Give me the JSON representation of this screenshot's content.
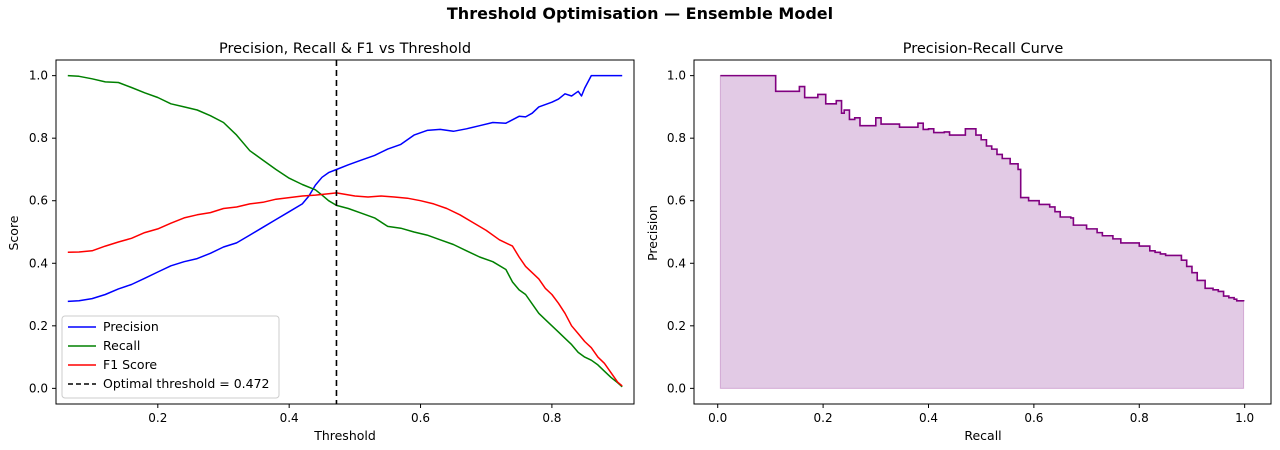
{
  "suptitle": "Threshold Optimisation — Ensemble Model",
  "chart_data": [
    {
      "type": "line",
      "title": "Precision, Recall & F1 vs Threshold",
      "xlabel": "Threshold",
      "ylabel": "Score",
      "xlim": [
        0.045,
        0.925
      ],
      "ylim": [
        -0.05,
        1.05
      ],
      "xticks": [
        0.2,
        0.4,
        0.6,
        0.8
      ],
      "yticks": [
        0.0,
        0.2,
        0.4,
        0.6,
        0.8,
        1.0
      ],
      "xtick_labels": [
        "0.2",
        "0.4",
        "0.6",
        "0.8"
      ],
      "ytick_labels": [
        "0.0",
        "0.2",
        "0.4",
        "0.6",
        "0.8",
        "1.0"
      ],
      "grid": false,
      "legend_position": "lower-left",
      "series": [
        {
          "name": "Precision",
          "color": "#0000ff",
          "points": [
            [
              0.063,
              0.278
            ],
            [
              0.08,
              0.28
            ],
            [
              0.1,
              0.287
            ],
            [
              0.12,
              0.3
            ],
            [
              0.14,
              0.318
            ],
            [
              0.16,
              0.332
            ],
            [
              0.18,
              0.352
            ],
            [
              0.2,
              0.372
            ],
            [
              0.22,
              0.392
            ],
            [
              0.24,
              0.405
            ],
            [
              0.26,
              0.415
            ],
            [
              0.28,
              0.432
            ],
            [
              0.3,
              0.452
            ],
            [
              0.32,
              0.465
            ],
            [
              0.34,
              0.49
            ],
            [
              0.36,
              0.515
            ],
            [
              0.38,
              0.54
            ],
            [
              0.4,
              0.565
            ],
            [
              0.42,
              0.59
            ],
            [
              0.43,
              0.615
            ],
            [
              0.44,
              0.65
            ],
            [
              0.45,
              0.675
            ],
            [
              0.46,
              0.69
            ],
            [
              0.472,
              0.7
            ],
            [
              0.49,
              0.715
            ],
            [
              0.51,
              0.73
            ],
            [
              0.53,
              0.745
            ],
            [
              0.55,
              0.765
            ],
            [
              0.57,
              0.78
            ],
            [
              0.59,
              0.81
            ],
            [
              0.61,
              0.825
            ],
            [
              0.63,
              0.828
            ],
            [
              0.65,
              0.822
            ],
            [
              0.67,
              0.83
            ],
            [
              0.69,
              0.84
            ],
            [
              0.71,
              0.85
            ],
            [
              0.73,
              0.848
            ],
            [
              0.75,
              0.87
            ],
            [
              0.76,
              0.868
            ],
            [
              0.77,
              0.88
            ],
            [
              0.78,
              0.9
            ],
            [
              0.8,
              0.915
            ],
            [
              0.81,
              0.925
            ],
            [
              0.82,
              0.942
            ],
            [
              0.83,
              0.935
            ],
            [
              0.84,
              0.95
            ],
            [
              0.845,
              0.935
            ],
            [
              0.85,
              0.96
            ],
            [
              0.855,
              0.98
            ],
            [
              0.86,
              1.0
            ],
            [
              0.907,
              1.0
            ]
          ]
        },
        {
          "name": "Recall",
          "color": "#008000",
          "points": [
            [
              0.063,
              1.0
            ],
            [
              0.08,
              0.998
            ],
            [
              0.1,
              0.99
            ],
            [
              0.12,
              0.98
            ],
            [
              0.14,
              0.978
            ],
            [
              0.16,
              0.962
            ],
            [
              0.18,
              0.945
            ],
            [
              0.2,
              0.93
            ],
            [
              0.22,
              0.91
            ],
            [
              0.24,
              0.9
            ],
            [
              0.26,
              0.89
            ],
            [
              0.28,
              0.872
            ],
            [
              0.3,
              0.85
            ],
            [
              0.32,
              0.81
            ],
            [
              0.34,
              0.76
            ],
            [
              0.36,
              0.73
            ],
            [
              0.38,
              0.7
            ],
            [
              0.4,
              0.672
            ],
            [
              0.42,
              0.652
            ],
            [
              0.44,
              0.635
            ],
            [
              0.45,
              0.618
            ],
            [
              0.46,
              0.6
            ],
            [
              0.472,
              0.585
            ],
            [
              0.49,
              0.575
            ],
            [
              0.51,
              0.56
            ],
            [
              0.53,
              0.545
            ],
            [
              0.55,
              0.518
            ],
            [
              0.57,
              0.512
            ],
            [
              0.59,
              0.5
            ],
            [
              0.61,
              0.49
            ],
            [
              0.63,
              0.475
            ],
            [
              0.65,
              0.46
            ],
            [
              0.67,
              0.44
            ],
            [
              0.69,
              0.42
            ],
            [
              0.71,
              0.405
            ],
            [
              0.73,
              0.38
            ],
            [
              0.74,
              0.34
            ],
            [
              0.75,
              0.315
            ],
            [
              0.76,
              0.3
            ],
            [
              0.77,
              0.27
            ],
            [
              0.78,
              0.24
            ],
            [
              0.79,
              0.22
            ],
            [
              0.8,
              0.2
            ],
            [
              0.81,
              0.18
            ],
            [
              0.82,
              0.16
            ],
            [
              0.83,
              0.14
            ],
            [
              0.84,
              0.115
            ],
            [
              0.85,
              0.1
            ],
            [
              0.86,
              0.09
            ],
            [
              0.87,
              0.075
            ],
            [
              0.88,
              0.055
            ],
            [
              0.89,
              0.035
            ],
            [
              0.9,
              0.018
            ],
            [
              0.907,
              0.005
            ]
          ]
        },
        {
          "name": "F1 Score",
          "color": "#ff0000",
          "points": [
            [
              0.063,
              0.435
            ],
            [
              0.08,
              0.436
            ],
            [
              0.1,
              0.44
            ],
            [
              0.12,
              0.455
            ],
            [
              0.14,
              0.468
            ],
            [
              0.16,
              0.48
            ],
            [
              0.18,
              0.498
            ],
            [
              0.2,
              0.51
            ],
            [
              0.22,
              0.528
            ],
            [
              0.24,
              0.545
            ],
            [
              0.26,
              0.555
            ],
            [
              0.28,
              0.562
            ],
            [
              0.3,
              0.575
            ],
            [
              0.32,
              0.58
            ],
            [
              0.34,
              0.59
            ],
            [
              0.36,
              0.595
            ],
            [
              0.38,
              0.605
            ],
            [
              0.4,
              0.61
            ],
            [
              0.42,
              0.615
            ],
            [
              0.44,
              0.618
            ],
            [
              0.46,
              0.622
            ],
            [
              0.472,
              0.625
            ],
            [
              0.5,
              0.615
            ],
            [
              0.52,
              0.612
            ],
            [
              0.54,
              0.615
            ],
            [
              0.56,
              0.612
            ],
            [
              0.58,
              0.608
            ],
            [
              0.6,
              0.6
            ],
            [
              0.62,
              0.59
            ],
            [
              0.64,
              0.575
            ],
            [
              0.66,
              0.555
            ],
            [
              0.68,
              0.53
            ],
            [
              0.7,
              0.505
            ],
            [
              0.72,
              0.475
            ],
            [
              0.74,
              0.455
            ],
            [
              0.75,
              0.42
            ],
            [
              0.76,
              0.39
            ],
            [
              0.77,
              0.37
            ],
            [
              0.78,
              0.35
            ],
            [
              0.79,
              0.32
            ],
            [
              0.8,
              0.3
            ],
            [
              0.81,
              0.272
            ],
            [
              0.82,
              0.24
            ],
            [
              0.83,
              0.2
            ],
            [
              0.84,
              0.175
            ],
            [
              0.85,
              0.15
            ],
            [
              0.86,
              0.13
            ],
            [
              0.87,
              0.1
            ],
            [
              0.88,
              0.08
            ],
            [
              0.89,
              0.05
            ],
            [
              0.9,
              0.02
            ],
            [
              0.907,
              0.008
            ]
          ]
        },
        {
          "name": "Optimal threshold = 0.472",
          "color": "#000000",
          "style": "dashed",
          "vertical_x": 0.472
        }
      ]
    },
    {
      "type": "area",
      "title": "Precision-Recall Curve",
      "xlabel": "Recall",
      "ylabel": "Precision",
      "xlim": [
        -0.045,
        1.05
      ],
      "ylim": [
        -0.05,
        1.05
      ],
      "xticks": [
        0.0,
        0.2,
        0.4,
        0.6,
        0.8,
        1.0
      ],
      "yticks": [
        0.0,
        0.2,
        0.4,
        0.6,
        0.8,
        1.0
      ],
      "xtick_labels": [
        "0.0",
        "0.2",
        "0.4",
        "0.6",
        "0.8",
        "1.0"
      ],
      "ytick_labels": [
        "0.0",
        "0.2",
        "0.4",
        "0.6",
        "0.8",
        "1.0"
      ],
      "grid": false,
      "series": [
        {
          "line_color": "#800080",
          "fill_color": "#d8b8dc",
          "step_points": [
            [
              0.005,
              1.0
            ],
            [
              0.11,
              1.0
            ],
            [
              0.11,
              0.95
            ],
            [
              0.155,
              0.965
            ],
            [
              0.165,
              0.93
            ],
            [
              0.19,
              0.94
            ],
            [
              0.205,
              0.91
            ],
            [
              0.225,
              0.92
            ],
            [
              0.235,
              0.88
            ],
            [
              0.24,
              0.89
            ],
            [
              0.25,
              0.86
            ],
            [
              0.26,
              0.865
            ],
            [
              0.27,
              0.84
            ],
            [
              0.3,
              0.865
            ],
            [
              0.31,
              0.845
            ],
            [
              0.34,
              0.845
            ],
            [
              0.345,
              0.835
            ],
            [
              0.38,
              0.848
            ],
            [
              0.39,
              0.828
            ],
            [
              0.4,
              0.83
            ],
            [
              0.41,
              0.818
            ],
            [
              0.43,
              0.82
            ],
            [
              0.44,
              0.81
            ],
            [
              0.47,
              0.83
            ],
            [
              0.49,
              0.81
            ],
            [
              0.5,
              0.795
            ],
            [
              0.51,
              0.775
            ],
            [
              0.52,
              0.765
            ],
            [
              0.53,
              0.748
            ],
            [
              0.54,
              0.735
            ],
            [
              0.555,
              0.718
            ],
            [
              0.57,
              0.7
            ],
            [
              0.575,
              0.61
            ],
            [
              0.59,
              0.6
            ],
            [
              0.61,
              0.588
            ],
            [
              0.63,
              0.58
            ],
            [
              0.64,
              0.565
            ],
            [
              0.65,
              0.548
            ],
            [
              0.67,
              0.545
            ],
            [
              0.675,
              0.522
            ],
            [
              0.7,
              0.51
            ],
            [
              0.72,
              0.498
            ],
            [
              0.73,
              0.488
            ],
            [
              0.75,
              0.478
            ],
            [
              0.765,
              0.465
            ],
            [
              0.8,
              0.455
            ],
            [
              0.82,
              0.44
            ],
            [
              0.83,
              0.435
            ],
            [
              0.84,
              0.43
            ],
            [
              0.85,
              0.425
            ],
            [
              0.88,
              0.41
            ],
            [
              0.89,
              0.39
            ],
            [
              0.9,
              0.37
            ],
            [
              0.91,
              0.345
            ],
            [
              0.925,
              0.32
            ],
            [
              0.94,
              0.315
            ],
            [
              0.95,
              0.31
            ],
            [
              0.96,
              0.295
            ],
            [
              0.97,
              0.29
            ],
            [
              0.98,
              0.285
            ],
            [
              0.985,
              0.28
            ],
            [
              0.998,
              0.278
            ]
          ]
        }
      ]
    }
  ]
}
